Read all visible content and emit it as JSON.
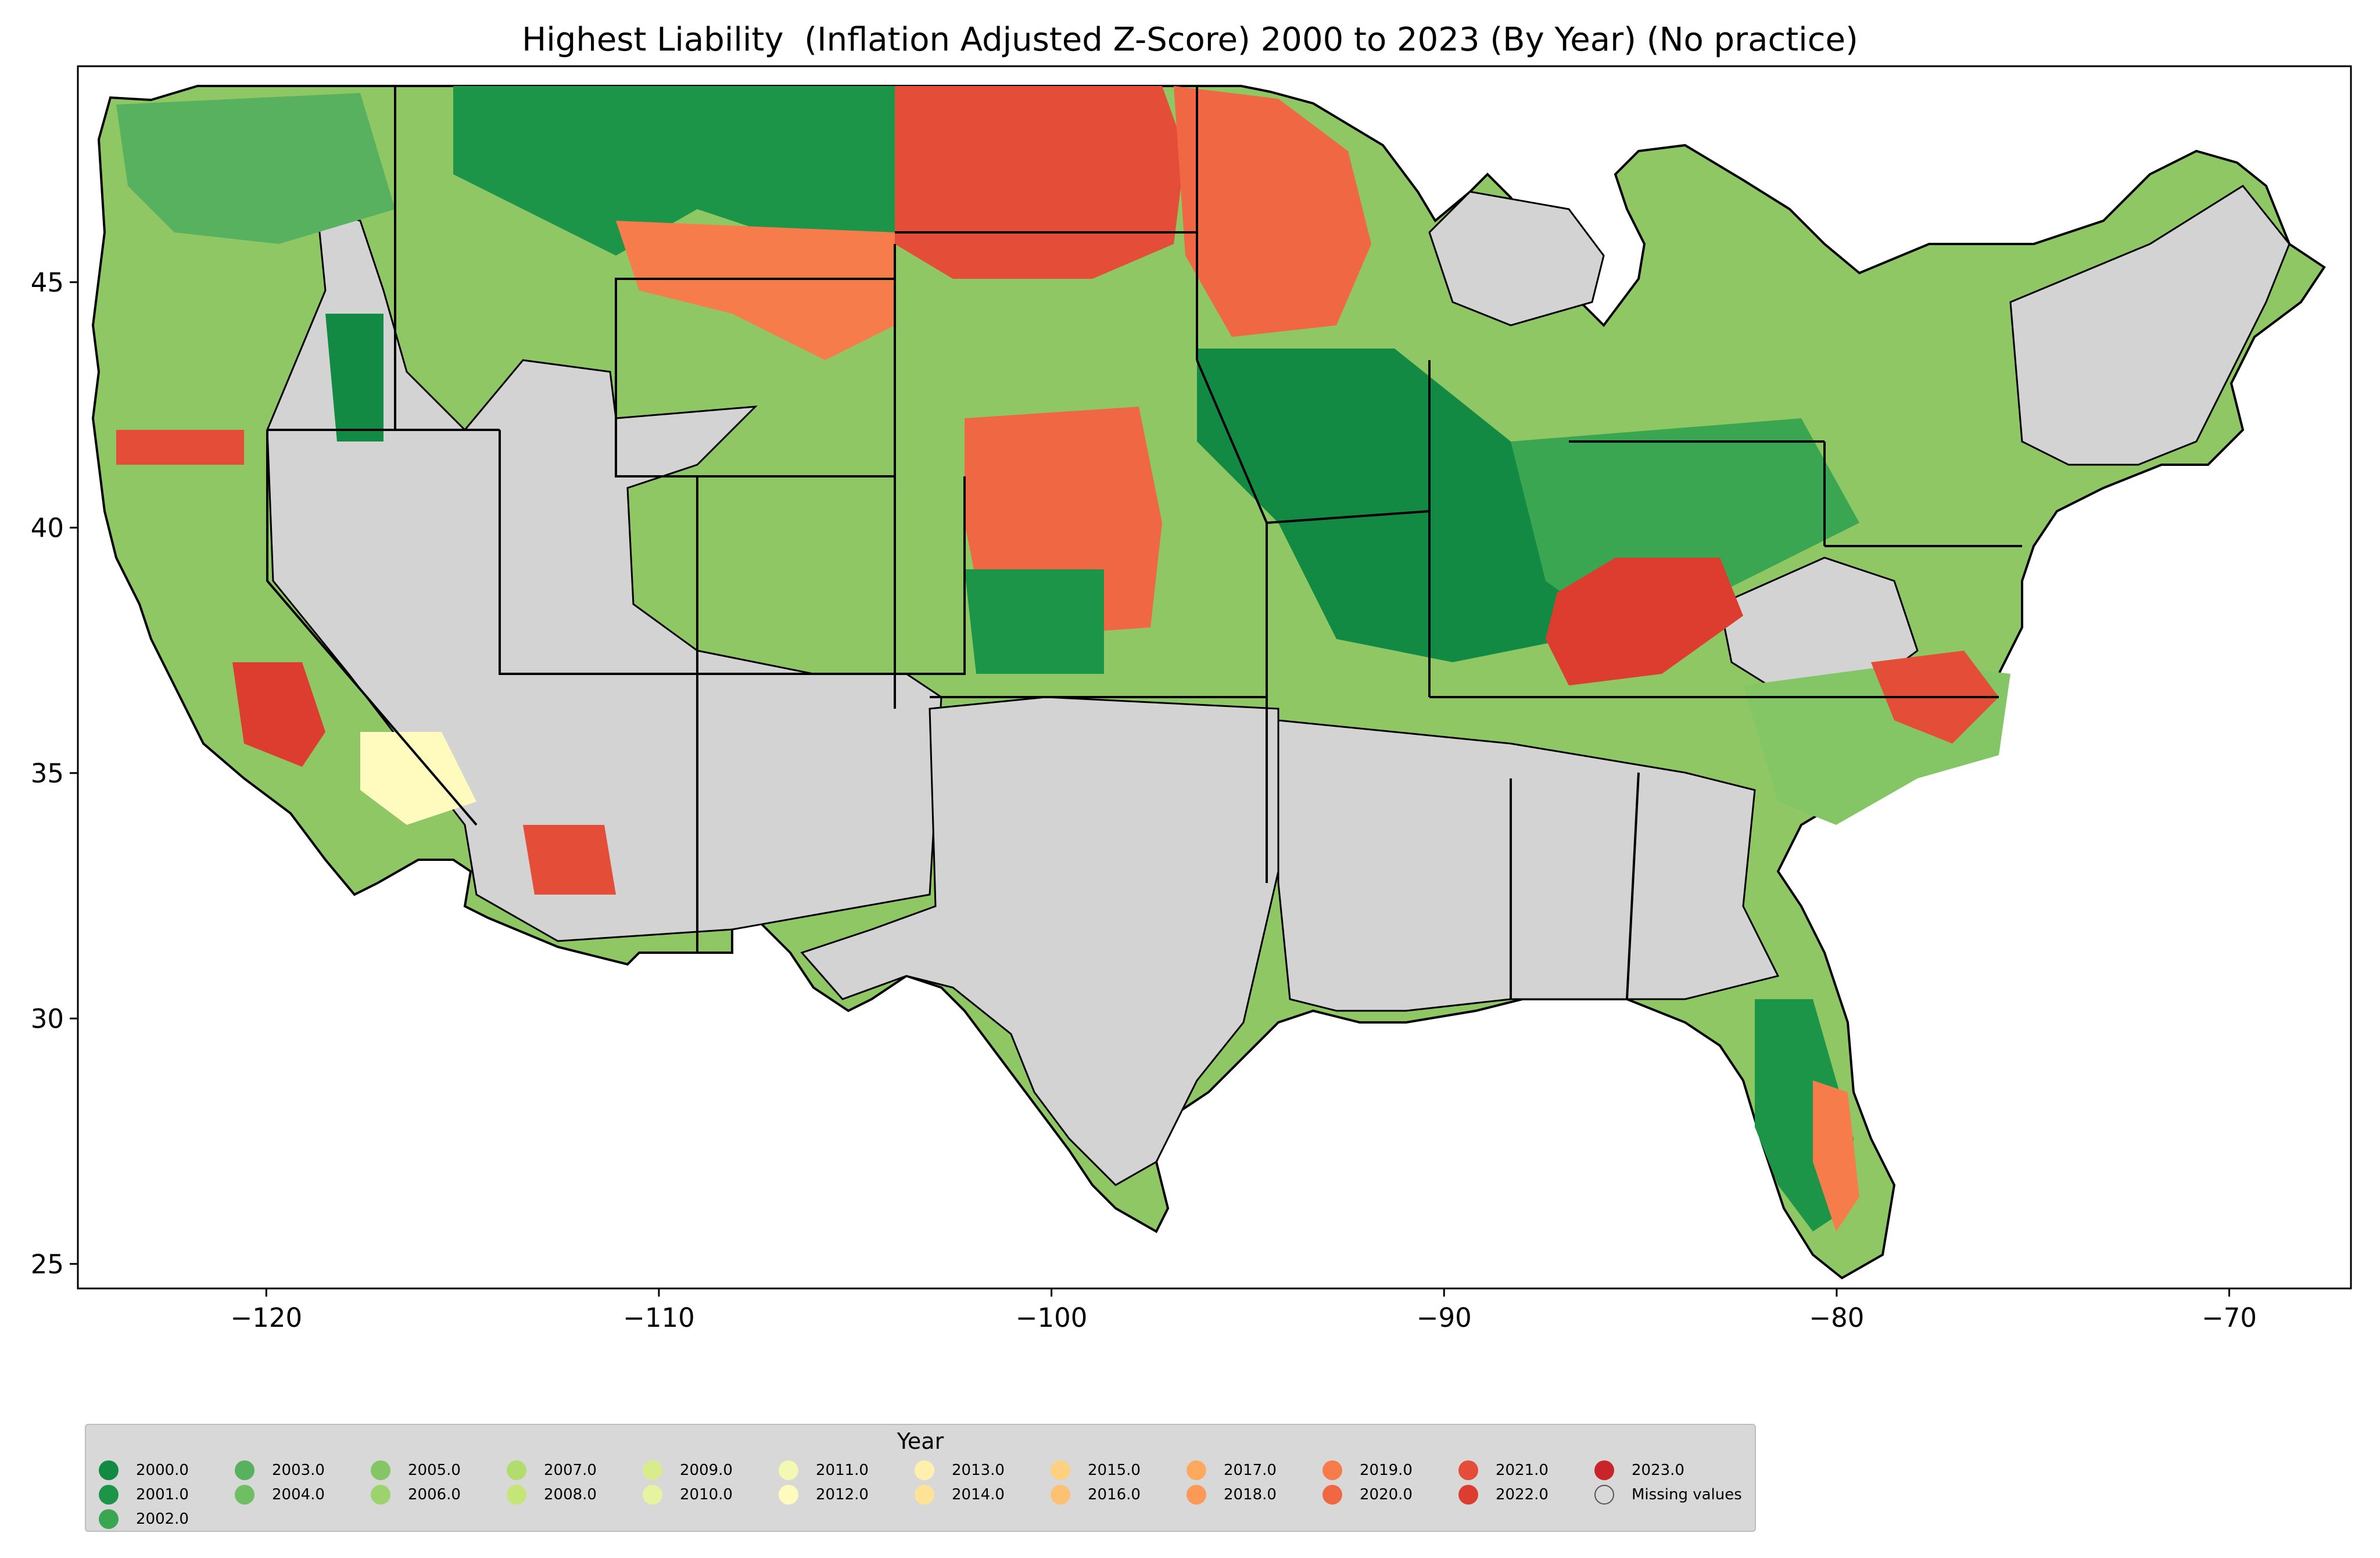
{
  "title": "Highest Liability  (Inflation Adjusted Z-Score) 2000 to 2023 (By Year) (No practice)",
  "axes": {
    "x_ticks": [
      "−120",
      "−110",
      "−100",
      "−90",
      "−80",
      "−70"
    ],
    "y_ticks": [
      "45",
      "40",
      "35",
      "30",
      "25"
    ],
    "xlim": [
      -124.8,
      -66.9
    ],
    "ylim": [
      24.5,
      49.4
    ]
  },
  "map": {
    "type": "choropleth",
    "region": "contiguous United States, by county",
    "missing_color": "#d3d3d3",
    "county_border_color": "#000000",
    "state_border_color": "#000000"
  },
  "legend": {
    "title": "Year",
    "entries": [
      {
        "label": "2000.0",
        "color": "#138a43"
      },
      {
        "label": "2001.0",
        "color": "#1d9548"
      },
      {
        "label": "2002.0",
        "color": "#3aa652"
      },
      {
        "label": "2003.0",
        "color": "#57b15e"
      },
      {
        "label": "2004.0",
        "color": "#6fbe63"
      },
      {
        "label": "2005.0",
        "color": "#84c665"
      },
      {
        "label": "2006.0",
        "color": "#9dd36c"
      },
      {
        "label": "2007.0",
        "color": "#b3dc6e"
      },
      {
        "label": "2008.0",
        "color": "#c6e577"
      },
      {
        "label": "2009.0",
        "color": "#d9ec8c"
      },
      {
        "label": "2010.0",
        "color": "#e6f39f"
      },
      {
        "label": "2011.0",
        "color": "#f3f8b3"
      },
      {
        "label": "2012.0",
        "color": "#fffbbf"
      },
      {
        "label": "2013.0",
        "color": "#fff0ae"
      },
      {
        "label": "2014.0",
        "color": "#fee295"
      },
      {
        "label": "2015.0",
        "color": "#fdd180"
      },
      {
        "label": "2016.0",
        "color": "#fdc173"
      },
      {
        "label": "2017.0",
        "color": "#fdaa5f"
      },
      {
        "label": "2018.0",
        "color": "#fb9a57"
      },
      {
        "label": "2019.0",
        "color": "#f67d4b"
      },
      {
        "label": "2020.0",
        "color": "#f06843"
      },
      {
        "label": "2021.0",
        "color": "#e44d37"
      },
      {
        "label": "2022.0",
        "color": "#dd3d2e"
      },
      {
        "label": "2023.0",
        "color": "#c92429"
      },
      {
        "label": "Missing values",
        "color": "#d3d3d3"
      }
    ]
  }
}
